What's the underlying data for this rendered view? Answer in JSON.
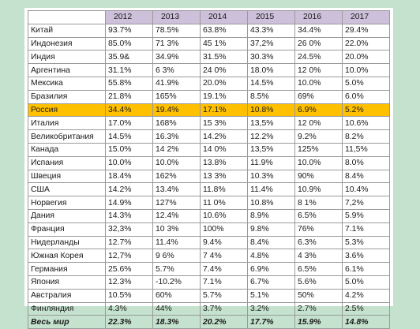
{
  "table": {
    "years": [
      "2012",
      "2013",
      "2014",
      "2015",
      "2016",
      "2017"
    ],
    "highlight_color": "#ffc000",
    "header_color": "#ccc0da",
    "background_color": "#c4e2cd",
    "rows": [
      {
        "country": "Китай",
        "values": [
          "93.7%",
          "78.5%",
          "63.8%",
          "43.3%",
          "34.4%",
          "29.4%"
        ]
      },
      {
        "country": "Индонезия",
        "values": [
          "85.0%",
          "71 3%",
          "45 1%",
          "37,2%",
          "26 0%",
          "22.0%"
        ]
      },
      {
        "country": "Индия",
        "values": [
          "35.9&",
          "34.9%",
          "31.5%",
          "30.3%",
          "24.5%",
          "20.0%"
        ]
      },
      {
        "country": "Аргентина",
        "values": [
          "31.1%",
          "6 3%",
          "24 0%",
          "18.0%",
          "12 0%",
          "10.0%"
        ]
      },
      {
        "country": "Мексика",
        "values": [
          "55.8%",
          "41.9%",
          "20.0%",
          "14.5%",
          "10.0%",
          "5.0%"
        ]
      },
      {
        "country": "Бразилия",
        "values": [
          "21.8%",
          "165%",
          "19.1%",
          "8.5%",
          "69%",
          "6.0%"
        ]
      },
      {
        "country": "Россия",
        "values": [
          "34.4%",
          "19.4%",
          "17.1%",
          "10.8%",
          "6.9%",
          "5.2%"
        ],
        "highlight": true
      },
      {
        "country": "Италия",
        "values": [
          "17.0%",
          "168%",
          "15 3%",
          "13,5%",
          "12 0%",
          "10.6%"
        ]
      },
      {
        "country": "Великобритания",
        "values": [
          "14.5%",
          "16.3%",
          "14.2%",
          "12.2%",
          "9.2%",
          "8.2%"
        ]
      },
      {
        "country": "Канада",
        "values": [
          "15.0%",
          "14 2%",
          "14 0%",
          "13,5%",
          "125%",
          "11,5%"
        ]
      },
      {
        "country": "Испания",
        "values": [
          "10.0%",
          "10.0%",
          "13.8%",
          "11.9%",
          "10.0%",
          "8.0%"
        ]
      },
      {
        "country": "Швеция",
        "values": [
          "18.4%",
          "162%",
          "13 3%",
          "10.3%",
          "90%",
          "8.4%"
        ]
      },
      {
        "country": "США",
        "values": [
          "14.2%",
          "13.4%",
          "11.8%",
          "11.4%",
          "10.9%",
          "10.4%"
        ]
      },
      {
        "country": "Норвегия",
        "values": [
          "14.9%",
          "127%",
          "11 0%",
          "10.8%",
          "8 1%",
          "7,2%"
        ]
      },
      {
        "country": "Дания",
        "values": [
          "14.3%",
          "12.4%",
          "10.6%",
          "8.9%",
          "6.5%",
          "5.9%"
        ]
      },
      {
        "country": "Франция",
        "values": [
          "32,3%",
          "10 3%",
          "100%",
          "9.8%",
          "76%",
          "7.1%"
        ]
      },
      {
        "country": "Нидерланды",
        "values": [
          "12.7%",
          "11.4%",
          "9.4%",
          "8.4%",
          "6.3%",
          "5.3%"
        ]
      },
      {
        "country": "Южная Корея",
        "values": [
          "12,7%",
          "9 6%",
          "7 4%",
          "4.8%",
          "4 3%",
          "3.6%"
        ]
      },
      {
        "country": "Германия",
        "values": [
          "25.6%",
          "5.7%",
          "7.4%",
          "6.9%",
          "6.5%",
          "6.1%"
        ]
      },
      {
        "country": "Япония",
        "values": [
          "12.3%",
          "-10.2%",
          "7.1%",
          "6.7%",
          "5.6%",
          "5.0%"
        ]
      },
      {
        "country": "Австралия",
        "values": [
          "10.5%",
          "60%",
          "5.7%",
          "5.1%",
          "50%",
          "4.2%"
        ]
      },
      {
        "country": "Финляндия",
        "values": [
          "4.3%",
          "44%",
          "3.7%",
          "3.2%",
          "2.7%",
          "2.5%"
        ]
      },
      {
        "country": "Весь мир",
        "values": [
          "22.3%",
          "18.3%",
          "20.2%",
          "17.7%",
          "15.9%",
          "14.8%"
        ],
        "total": true
      }
    ]
  }
}
